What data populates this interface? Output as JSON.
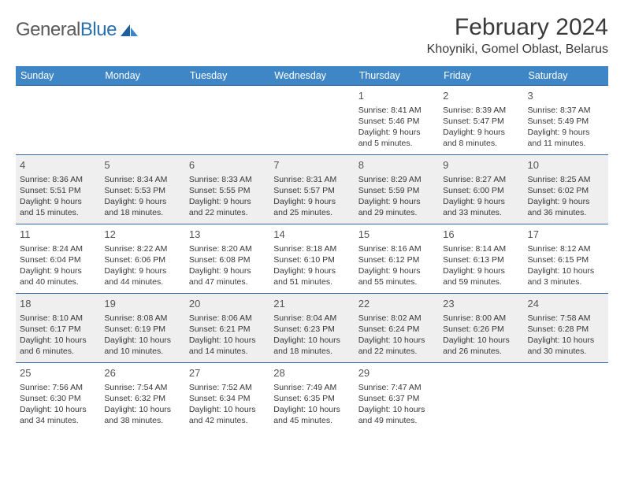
{
  "logo": {
    "text_part1": "General",
    "text_part2": "Blue"
  },
  "title": {
    "month_year": "February 2024",
    "location": "Khoyniki, Gomel Oblast, Belarus"
  },
  "colors": {
    "header_bg": "#3f86c7",
    "header_text": "#ffffff",
    "cell_border": "#2f6aa3",
    "shaded_row": "#efefef",
    "logo_gray": "#5a5a5a",
    "logo_blue": "#2a6fb0"
  },
  "day_headers": [
    "Sunday",
    "Monday",
    "Tuesday",
    "Wednesday",
    "Thursday",
    "Friday",
    "Saturday"
  ],
  "weeks": [
    {
      "shaded": false,
      "days": [
        null,
        null,
        null,
        null,
        {
          "n": "1",
          "sunrise": "Sunrise: 8:41 AM",
          "sunset": "Sunset: 5:46 PM",
          "day1": "Daylight: 9 hours",
          "day2": "and 5 minutes."
        },
        {
          "n": "2",
          "sunrise": "Sunrise: 8:39 AM",
          "sunset": "Sunset: 5:47 PM",
          "day1": "Daylight: 9 hours",
          "day2": "and 8 minutes."
        },
        {
          "n": "3",
          "sunrise": "Sunrise: 8:37 AM",
          "sunset": "Sunset: 5:49 PM",
          "day1": "Daylight: 9 hours",
          "day2": "and 11 minutes."
        }
      ]
    },
    {
      "shaded": true,
      "days": [
        {
          "n": "4",
          "sunrise": "Sunrise: 8:36 AM",
          "sunset": "Sunset: 5:51 PM",
          "day1": "Daylight: 9 hours",
          "day2": "and 15 minutes."
        },
        {
          "n": "5",
          "sunrise": "Sunrise: 8:34 AM",
          "sunset": "Sunset: 5:53 PM",
          "day1": "Daylight: 9 hours",
          "day2": "and 18 minutes."
        },
        {
          "n": "6",
          "sunrise": "Sunrise: 8:33 AM",
          "sunset": "Sunset: 5:55 PM",
          "day1": "Daylight: 9 hours",
          "day2": "and 22 minutes."
        },
        {
          "n": "7",
          "sunrise": "Sunrise: 8:31 AM",
          "sunset": "Sunset: 5:57 PM",
          "day1": "Daylight: 9 hours",
          "day2": "and 25 minutes."
        },
        {
          "n": "8",
          "sunrise": "Sunrise: 8:29 AM",
          "sunset": "Sunset: 5:59 PM",
          "day1": "Daylight: 9 hours",
          "day2": "and 29 minutes."
        },
        {
          "n": "9",
          "sunrise": "Sunrise: 8:27 AM",
          "sunset": "Sunset: 6:00 PM",
          "day1": "Daylight: 9 hours",
          "day2": "and 33 minutes."
        },
        {
          "n": "10",
          "sunrise": "Sunrise: 8:25 AM",
          "sunset": "Sunset: 6:02 PM",
          "day1": "Daylight: 9 hours",
          "day2": "and 36 minutes."
        }
      ]
    },
    {
      "shaded": false,
      "days": [
        {
          "n": "11",
          "sunrise": "Sunrise: 8:24 AM",
          "sunset": "Sunset: 6:04 PM",
          "day1": "Daylight: 9 hours",
          "day2": "and 40 minutes."
        },
        {
          "n": "12",
          "sunrise": "Sunrise: 8:22 AM",
          "sunset": "Sunset: 6:06 PM",
          "day1": "Daylight: 9 hours",
          "day2": "and 44 minutes."
        },
        {
          "n": "13",
          "sunrise": "Sunrise: 8:20 AM",
          "sunset": "Sunset: 6:08 PM",
          "day1": "Daylight: 9 hours",
          "day2": "and 47 minutes."
        },
        {
          "n": "14",
          "sunrise": "Sunrise: 8:18 AM",
          "sunset": "Sunset: 6:10 PM",
          "day1": "Daylight: 9 hours",
          "day2": "and 51 minutes."
        },
        {
          "n": "15",
          "sunrise": "Sunrise: 8:16 AM",
          "sunset": "Sunset: 6:12 PM",
          "day1": "Daylight: 9 hours",
          "day2": "and 55 minutes."
        },
        {
          "n": "16",
          "sunrise": "Sunrise: 8:14 AM",
          "sunset": "Sunset: 6:13 PM",
          "day1": "Daylight: 9 hours",
          "day2": "and 59 minutes."
        },
        {
          "n": "17",
          "sunrise": "Sunrise: 8:12 AM",
          "sunset": "Sunset: 6:15 PM",
          "day1": "Daylight: 10 hours",
          "day2": "and 3 minutes."
        }
      ]
    },
    {
      "shaded": true,
      "days": [
        {
          "n": "18",
          "sunrise": "Sunrise: 8:10 AM",
          "sunset": "Sunset: 6:17 PM",
          "day1": "Daylight: 10 hours",
          "day2": "and 6 minutes."
        },
        {
          "n": "19",
          "sunrise": "Sunrise: 8:08 AM",
          "sunset": "Sunset: 6:19 PM",
          "day1": "Daylight: 10 hours",
          "day2": "and 10 minutes."
        },
        {
          "n": "20",
          "sunrise": "Sunrise: 8:06 AM",
          "sunset": "Sunset: 6:21 PM",
          "day1": "Daylight: 10 hours",
          "day2": "and 14 minutes."
        },
        {
          "n": "21",
          "sunrise": "Sunrise: 8:04 AM",
          "sunset": "Sunset: 6:23 PM",
          "day1": "Daylight: 10 hours",
          "day2": "and 18 minutes."
        },
        {
          "n": "22",
          "sunrise": "Sunrise: 8:02 AM",
          "sunset": "Sunset: 6:24 PM",
          "day1": "Daylight: 10 hours",
          "day2": "and 22 minutes."
        },
        {
          "n": "23",
          "sunrise": "Sunrise: 8:00 AM",
          "sunset": "Sunset: 6:26 PM",
          "day1": "Daylight: 10 hours",
          "day2": "and 26 minutes."
        },
        {
          "n": "24",
          "sunrise": "Sunrise: 7:58 AM",
          "sunset": "Sunset: 6:28 PM",
          "day1": "Daylight: 10 hours",
          "day2": "and 30 minutes."
        }
      ]
    },
    {
      "shaded": false,
      "days": [
        {
          "n": "25",
          "sunrise": "Sunrise: 7:56 AM",
          "sunset": "Sunset: 6:30 PM",
          "day1": "Daylight: 10 hours",
          "day2": "and 34 minutes."
        },
        {
          "n": "26",
          "sunrise": "Sunrise: 7:54 AM",
          "sunset": "Sunset: 6:32 PM",
          "day1": "Daylight: 10 hours",
          "day2": "and 38 minutes."
        },
        {
          "n": "27",
          "sunrise": "Sunrise: 7:52 AM",
          "sunset": "Sunset: 6:34 PM",
          "day1": "Daylight: 10 hours",
          "day2": "and 42 minutes."
        },
        {
          "n": "28",
          "sunrise": "Sunrise: 7:49 AM",
          "sunset": "Sunset: 6:35 PM",
          "day1": "Daylight: 10 hours",
          "day2": "and 45 minutes."
        },
        {
          "n": "29",
          "sunrise": "Sunrise: 7:47 AM",
          "sunset": "Sunset: 6:37 PM",
          "day1": "Daylight: 10 hours",
          "day2": "and 49 minutes."
        },
        null,
        null
      ]
    }
  ]
}
